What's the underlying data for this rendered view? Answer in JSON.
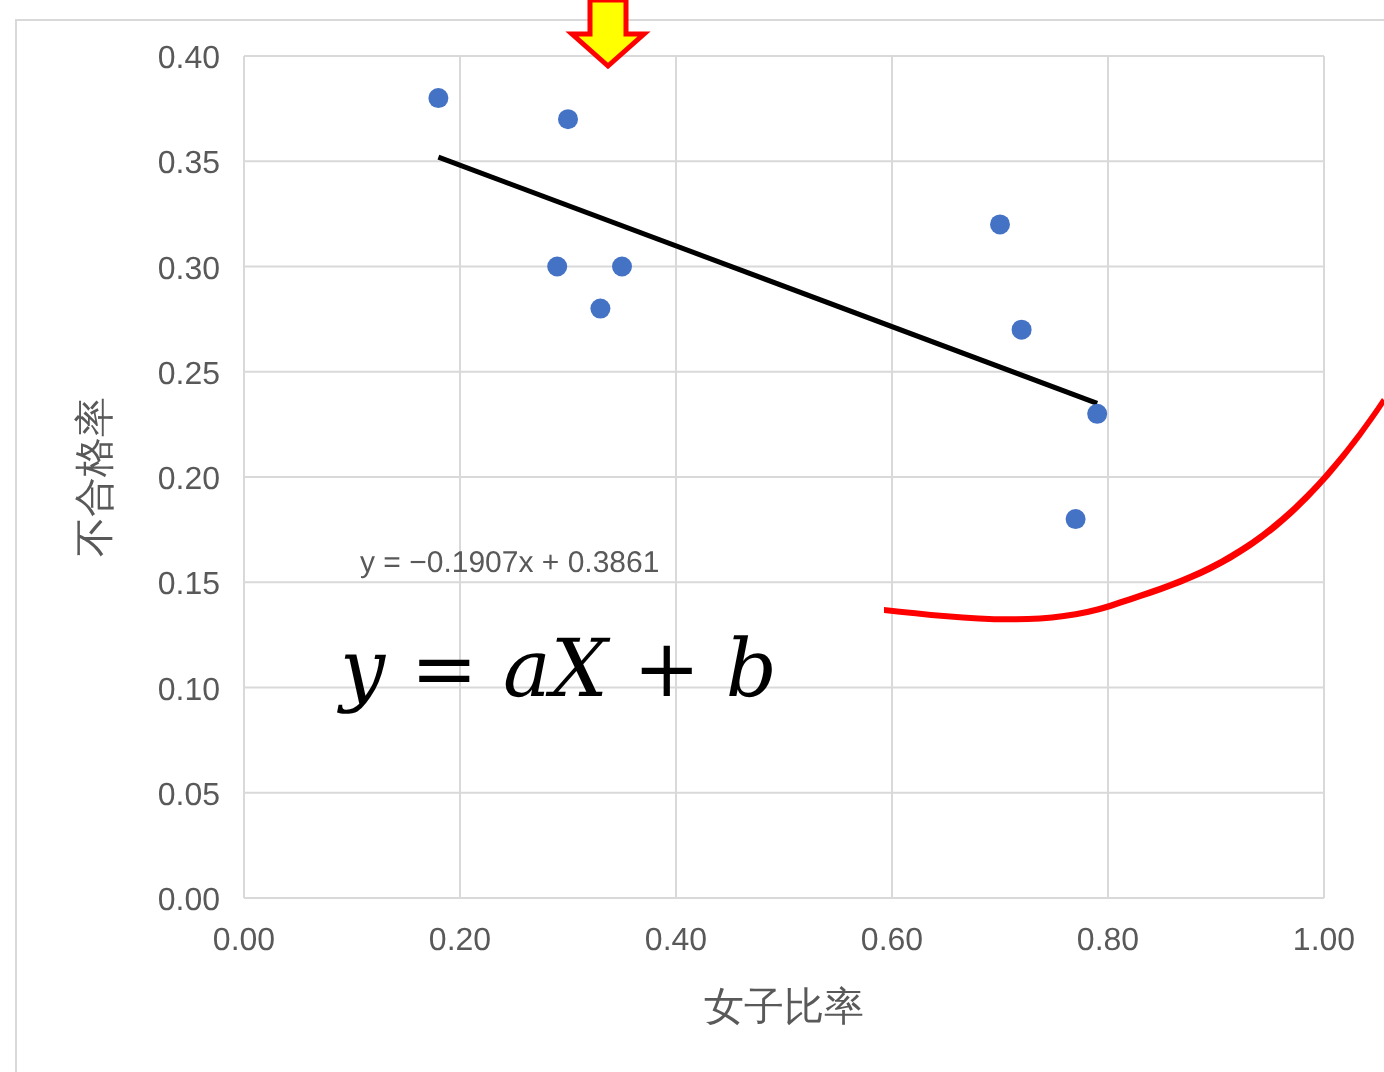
{
  "chart_data": {
    "type": "scatter",
    "xlabel": "女子比率",
    "ylabel": "不合格率",
    "xlim": [
      0,
      1
    ],
    "xticks": [
      {
        "value": 0,
        "label": "0.00"
      },
      {
        "value": 0.2,
        "label": "0.20"
      },
      {
        "value": 0.4,
        "label": "0.40"
      },
      {
        "value": 0.6,
        "label": "0.60"
      },
      {
        "value": 0.8,
        "label": "0.80"
      },
      {
        "value": 1,
        "label": "1.00"
      }
    ],
    "ylim": [
      0,
      0.4
    ],
    "yticks": [
      {
        "value": 0,
        "label": "0.00"
      },
      {
        "value": 0.05,
        "label": "0.05"
      },
      {
        "value": 0.1,
        "label": "0.10"
      },
      {
        "value": 0.15,
        "label": "0.15"
      },
      {
        "value": 0.2,
        "label": "0.20"
      },
      {
        "value": 0.25,
        "label": "0.25"
      },
      {
        "value": 0.3,
        "label": "0.30"
      },
      {
        "value": 0.35,
        "label": "0.35"
      },
      {
        "value": 0.4,
        "label": "0.40"
      }
    ],
    "grid": true,
    "series": [
      {
        "type": "scatter",
        "marker": "circle",
        "color": "#4472c4",
        "x": [
          0.18,
          0.3,
          0.29,
          0.35,
          0.33,
          0.7,
          0.72,
          0.79,
          0.77
        ],
        "values": [
          0.38,
          0.37,
          0.3,
          0.3,
          0.28,
          0.32,
          0.27,
          0.23,
          0.18
        ]
      },
      {
        "type": "line",
        "color": "#000000",
        "x": [
          0.18,
          0.79
        ],
        "values": [
          0.352,
          0.235
        ]
      }
    ],
    "annotations": [
      "y = −0.1907x + 0.3861",
      "y = aX + b"
    ]
  }
}
